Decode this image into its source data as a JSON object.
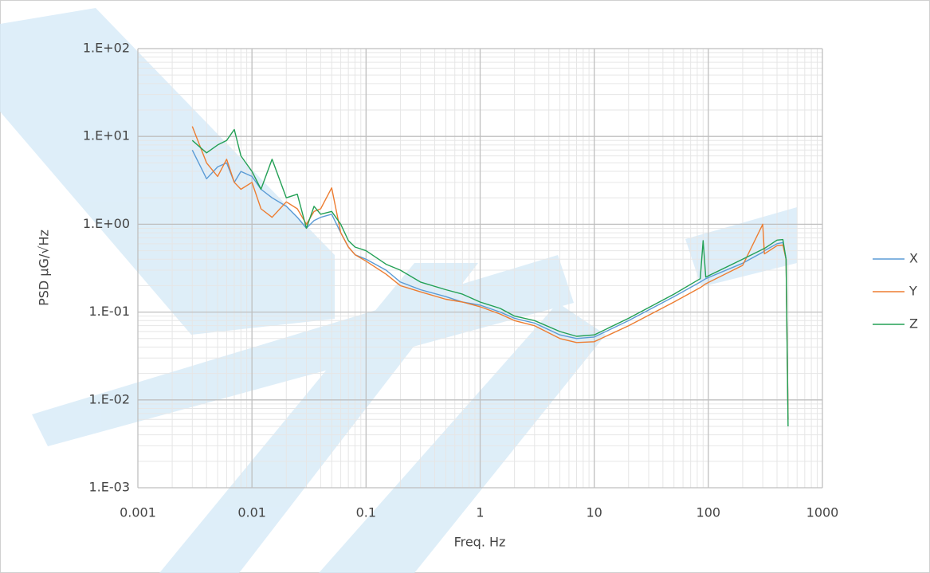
{
  "chart_data": {
    "type": "line",
    "x_label": "Freq. Hz",
    "y_label": "PSD μG/√Hz",
    "x": [
      0.003,
      0.004,
      0.005,
      0.006,
      0.007,
      0.008,
      0.01,
      0.012,
      0.015,
      0.02,
      0.025,
      0.03,
      0.035,
      0.04,
      0.05,
      0.06,
      0.07,
      0.08,
      0.1,
      0.15,
      0.2,
      0.3,
      0.5,
      0.7,
      1,
      1.5,
      2,
      3,
      5,
      7,
      10,
      20,
      50,
      85,
      90,
      95,
      200,
      300,
      310,
      400,
      450,
      480,
      500
    ],
    "series": [
      {
        "name": "X",
        "color": "#5b9bd5",
        "values": [
          7,
          3.3,
          4.5,
          5,
          3,
          4,
          3.5,
          2.5,
          2,
          1.6,
          1.2,
          0.9,
          1.1,
          1.2,
          1.3,
          0.8,
          0.55,
          0.45,
          0.4,
          0.3,
          0.22,
          0.18,
          0.15,
          0.13,
          0.12,
          0.1,
          0.085,
          0.075,
          0.055,
          0.05,
          0.052,
          0.08,
          0.15,
          0.22,
          0.23,
          0.24,
          0.36,
          0.48,
          0.5,
          0.6,
          0.62,
          0.4,
          0.006
        ]
      },
      {
        "name": "Y",
        "color": "#ed7d31",
        "values": [
          13,
          5,
          3.5,
          5.5,
          3,
          2.5,
          3,
          1.5,
          1.2,
          1.8,
          1.5,
          1.0,
          1.4,
          1.5,
          2.6,
          0.8,
          0.55,
          0.45,
          0.38,
          0.27,
          0.2,
          0.17,
          0.14,
          0.13,
          0.115,
          0.095,
          0.08,
          0.07,
          0.05,
          0.045,
          0.046,
          0.07,
          0.13,
          0.19,
          0.2,
          0.21,
          0.34,
          1.0,
          0.46,
          0.57,
          0.58,
          0.4,
          0.006
        ]
      },
      {
        "name": "Z",
        "color": "#23a055",
        "values": [
          9,
          6.5,
          8,
          9,
          12,
          6,
          4,
          2.5,
          5.5,
          2,
          2.2,
          0.9,
          1.6,
          1.3,
          1.4,
          1.0,
          0.65,
          0.55,
          0.5,
          0.35,
          0.3,
          0.22,
          0.18,
          0.16,
          0.13,
          0.11,
          0.09,
          0.08,
          0.06,
          0.053,
          0.055,
          0.085,
          0.16,
          0.24,
          0.65,
          0.25,
          0.4,
          0.52,
          0.53,
          0.66,
          0.67,
          0.4,
          0.005
        ]
      }
    ],
    "xlim": [
      0.001,
      1000
    ],
    "xticks": [
      0.001,
      0.01,
      0.1,
      1,
      10,
      100,
      1000
    ],
    "ylim": [
      0.001,
      100
    ],
    "yticks": [
      {
        "value": 0.001,
        "label": "1.E-03"
      },
      {
        "value": 0.01,
        "label": "1.E-02"
      },
      {
        "value": 0.1,
        "label": "1.E-01"
      },
      {
        "value": 1,
        "label": "1.E+00"
      },
      {
        "value": 10,
        "label": "1.E+01"
      },
      {
        "value": 100,
        "label": "1.E+02"
      }
    ],
    "x_log": true,
    "y_log": true,
    "grid": true,
    "minor_grid": true,
    "legend": "right"
  }
}
